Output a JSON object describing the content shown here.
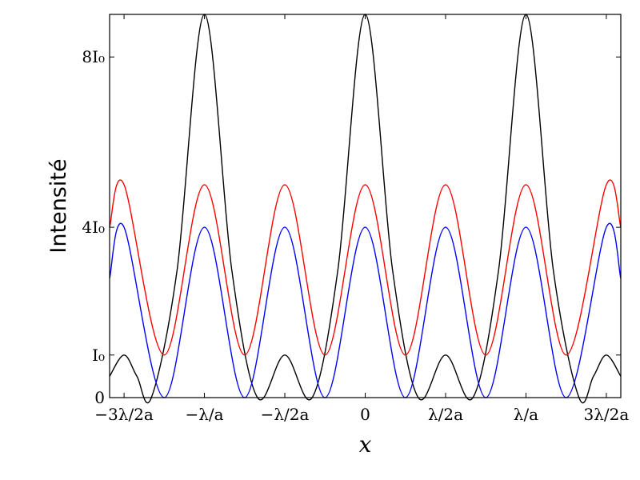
{
  "chart_data": {
    "type": "line",
    "title": "",
    "xlabel": "x",
    "ylabel": "Intensité",
    "xlim": [
      -1.59,
      1.59
    ],
    "ylim": [
      0,
      9
    ],
    "grid": false,
    "legend": "none",
    "x_ticks": [
      {
        "value": -1.5,
        "label": "−3λ/2a"
      },
      {
        "value": -1.0,
        "label": "−λ/a"
      },
      {
        "value": -0.5,
        "label": "−λ/2a"
      },
      {
        "value": 0.0,
        "label": "0"
      },
      {
        "value": 0.5,
        "label": "λ/2a"
      },
      {
        "value": 1.0,
        "label": "λ/a"
      },
      {
        "value": 1.5,
        "label": "3λ/2a"
      }
    ],
    "y_ticks": [
      {
        "value": 0,
        "label": "0"
      },
      {
        "value": 1,
        "label": "I₀"
      },
      {
        "value": 4,
        "label": "4I₀"
      },
      {
        "value": 8,
        "label": "8I₀"
      }
    ],
    "series": [
      {
        "color": "#000000",
        "x": [
          -1.59,
          -1.5,
          -1.42,
          -1.33,
          -1.17,
          -1.0,
          -0.83,
          -0.67,
          -0.5,
          -0.33,
          -0.17,
          0.0,
          0.17,
          0.33,
          0.5,
          0.67,
          0.83,
          1.0,
          1.17,
          1.33,
          1.42,
          1.5,
          1.59
        ],
        "values": [
          0.5,
          1.0,
          0.5,
          0.0,
          3.0,
          9.0,
          3.0,
          0.0,
          1.0,
          0.0,
          3.0,
          9.0,
          3.0,
          0.0,
          1.0,
          0.0,
          3.0,
          9.0,
          3.0,
          0.0,
          0.5,
          1.0,
          0.5
        ]
      },
      {
        "color": "#ff0000",
        "x": [
          -1.59,
          -1.5,
          -1.25,
          -1.0,
          -0.75,
          -0.5,
          -0.25,
          0.0,
          0.25,
          0.5,
          0.75,
          1.0,
          1.25,
          1.5,
          1.59
        ],
        "values": [
          4.0,
          5.0,
          1.0,
          5.0,
          1.0,
          5.0,
          1.0,
          5.0,
          1.0,
          5.0,
          1.0,
          5.0,
          1.0,
          5.0,
          4.0
        ]
      },
      {
        "color": "#0000ff",
        "x": [
          -1.59,
          -1.5,
          -1.25,
          -1.0,
          -0.75,
          -0.5,
          -0.25,
          0.0,
          0.25,
          0.5,
          0.75,
          1.0,
          1.25,
          1.5,
          1.59
        ],
        "values": [
          2.8,
          4.0,
          0.0,
          4.0,
          0.0,
          4.0,
          0.0,
          4.0,
          0.0,
          4.0,
          0.0,
          4.0,
          0.0,
          4.0,
          2.8
        ]
      }
    ]
  }
}
